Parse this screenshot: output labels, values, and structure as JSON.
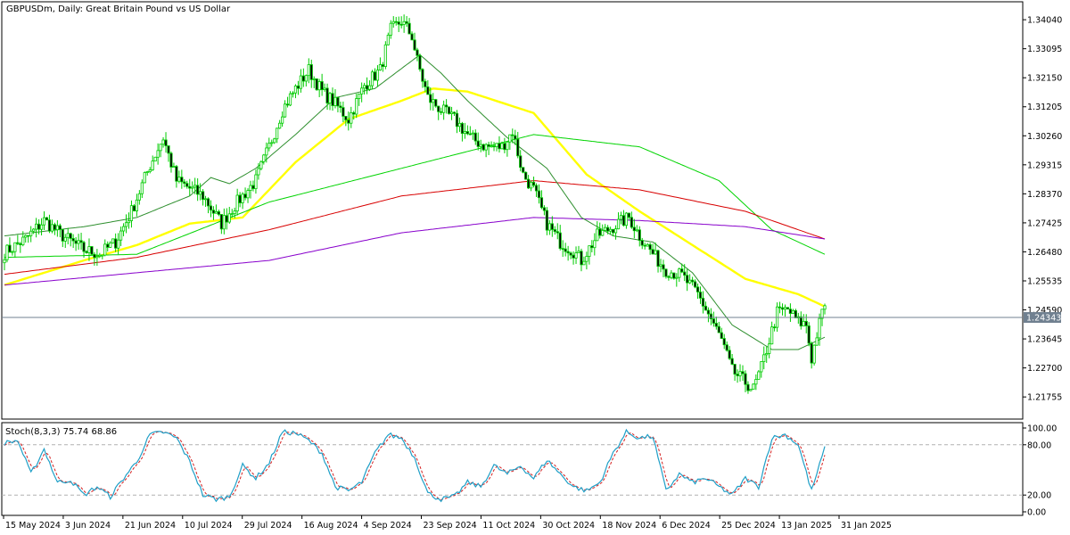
{
  "chart_data": [
    {
      "type": "candlestick",
      "title": "GBPUSDm, Daily:  Great Britain Pound vs US Dollar",
      "y_ticks": [
        "1.34040",
        "1.33095",
        "1.32150",
        "1.31205",
        "1.30260",
        "1.29315",
        "1.28370",
        "1.27425",
        "1.26480",
        "1.25535",
        "1.24590",
        "1.23645",
        "1.22700",
        "1.21755"
      ],
      "ylim": [
        1.2115,
        1.3445
      ],
      "x_tick_labels": [
        "15 May 2024",
        "3 Jun 2024",
        "21 Jun 2024",
        "10 Jul 2024",
        "29 Jul 2024",
        "16 Aug 2024",
        "4 Sep 2024",
        "23 Sep 2024",
        "11 Oct 2024",
        "30 Oct 2024",
        "18 Nov 2024",
        "6 Dec 2024",
        "25 Dec 2024",
        "13 Jan 2025",
        "31 Jan 2025"
      ],
      "current_price": "1.24343",
      "current_price_value": 1.24343,
      "close_path": [
        [
          0,
          1.2645
        ],
        [
          8,
          1.269
        ],
        [
          15,
          1.275
        ],
        [
          22,
          1.27
        ],
        [
          30,
          1.2655
        ],
        [
          36,
          1.264
        ],
        [
          42,
          1.268
        ],
        [
          48,
          1.278
        ],
        [
          55,
          1.293
        ],
        [
          60,
          1.302
        ],
        [
          65,
          1.288
        ],
        [
          75,
          1.283
        ],
        [
          82,
          1.274
        ],
        [
          87,
          1.28
        ],
        [
          95,
          1.288
        ],
        [
          100,
          1.299
        ],
        [
          105,
          1.311
        ],
        [
          110,
          1.318
        ],
        [
          115,
          1.324
        ],
        [
          120,
          1.317
        ],
        [
          125,
          1.313
        ],
        [
          130,
          1.308
        ],
        [
          136,
          1.319
        ],
        [
          142,
          1.324
        ],
        [
          146,
          1.337
        ],
        [
          150,
          1.34
        ],
        [
          154,
          1.335
        ],
        [
          156,
          1.327
        ],
        [
          160,
          1.315
        ],
        [
          165,
          1.311
        ],
        [
          170,
          1.308
        ],
        [
          176,
          1.302
        ],
        [
          182,
          1.299
        ],
        [
          188,
          1.299
        ],
        [
          192,
          1.304
        ],
        [
          196,
          1.29
        ],
        [
          200,
          1.285
        ],
        [
          205,
          1.274
        ],
        [
          210,
          1.268
        ],
        [
          215,
          1.265
        ],
        [
          218,
          1.262
        ],
        [
          224,
          1.27
        ],
        [
          230,
          1.273
        ],
        [
          236,
          1.276
        ],
        [
          240,
          1.27
        ],
        [
          246,
          1.263
        ],
        [
          250,
          1.259
        ],
        [
          256,
          1.257
        ],
        [
          262,
          1.251
        ],
        [
          267,
          1.243
        ],
        [
          271,
          1.236
        ],
        [
          275,
          1.226
        ],
        [
          279,
          1.223
        ],
        [
          283,
          1.22
        ],
        [
          286,
          1.227
        ],
        [
          289,
          1.236
        ],
        [
          292,
          1.245
        ],
        [
          296,
          1.246
        ],
        [
          300,
          1.242
        ],
        [
          303,
          1.241
        ],
        [
          305,
          1.23
        ],
        [
          307,
          1.238
        ],
        [
          310,
          1.248
        ]
      ],
      "moving_averages": [
        {
          "color": "#ffff00",
          "path": [
            [
              0,
              1.254
            ],
            [
              30,
              1.262
            ],
            [
              50,
              1.267
            ],
            [
              70,
              1.274
            ],
            [
              90,
              1.276
            ],
            [
              110,
              1.294
            ],
            [
              130,
              1.308
            ],
            [
              150,
              1.314
            ],
            [
              162,
              1.318
            ],
            [
              175,
              1.317
            ],
            [
              200,
              1.31
            ],
            [
              220,
              1.29
            ],
            [
              240,
              1.278
            ],
            [
              260,
              1.267
            ],
            [
              280,
              1.256
            ],
            [
              300,
              1.251
            ],
            [
              310,
              1.247
            ]
          ]
        },
        {
          "color": "#00d400",
          "path": [
            [
              0,
              1.263
            ],
            [
              50,
              1.264
            ],
            [
              100,
              1.281
            ],
            [
              150,
              1.292
            ],
            [
              200,
              1.303
            ],
            [
              240,
              1.299
            ],
            [
              270,
              1.288
            ],
            [
              290,
              1.272
            ],
            [
              310,
              1.264
            ]
          ]
        },
        {
          "color": "#d80000",
          "path": [
            [
              0,
              1.2575
            ],
            [
              50,
              1.263
            ],
            [
              100,
              1.272
            ],
            [
              150,
              1.283
            ],
            [
              200,
              1.288
            ],
            [
              240,
              1.285
            ],
            [
              280,
              1.278
            ],
            [
              310,
              1.269
            ]
          ]
        },
        {
          "color": "#8800cc",
          "path": [
            [
              0,
              1.254
            ],
            [
              100,
              1.262
            ],
            [
              150,
              1.271
            ],
            [
              200,
              1.276
            ],
            [
              240,
              1.275
            ],
            [
              280,
              1.273
            ],
            [
              310,
              1.269
            ]
          ]
        },
        {
          "color": "#2f8f2f",
          "path": [
            [
              0,
              1.27
            ],
            [
              30,
              1.273
            ],
            [
              50,
              1.276
            ],
            [
              70,
              1.283
            ],
            [
              78,
              1.289
            ],
            [
              85,
              1.287
            ],
            [
              95,
              1.292
            ],
            [
              110,
              1.303
            ],
            [
              125,
              1.315
            ],
            [
              140,
              1.318
            ],
            [
              157,
              1.329
            ],
            [
              165,
              1.323
            ],
            [
              175,
              1.314
            ],
            [
              190,
              1.302
            ],
            [
              205,
              1.292
            ],
            [
              218,
              1.276
            ],
            [
              230,
              1.27
            ],
            [
              245,
              1.268
            ],
            [
              260,
              1.258
            ],
            [
              275,
              1.241
            ],
            [
              290,
              1.233
            ],
            [
              300,
              1.233
            ],
            [
              310,
              1.237
            ]
          ]
        }
      ]
    },
    {
      "type": "line",
      "title": "Stoch(8,3,3) 75.74 68.86",
      "y_ticks": [
        "100.00",
        "80.00",
        "20.00",
        "0.00"
      ],
      "ylim": [
        0,
        100
      ],
      "levels": [
        80,
        20
      ],
      "main_color": "#1f9fc7",
      "signal_color": "#d42020",
      "main_path": [
        [
          0,
          82
        ],
        [
          5,
          85
        ],
        [
          10,
          45
        ],
        [
          15,
          75
        ],
        [
          20,
          35
        ],
        [
          25,
          38
        ],
        [
          30,
          20
        ],
        [
          35,
          30
        ],
        [
          40,
          18
        ],
        [
          45,
          40
        ],
        [
          50,
          60
        ],
        [
          55,
          92
        ],
        [
          60,
          95
        ],
        [
          65,
          88
        ],
        [
          70,
          60
        ],
        [
          75,
          20
        ],
        [
          80,
          15
        ],
        [
          85,
          18
        ],
        [
          90,
          55
        ],
        [
          95,
          40
        ],
        [
          100,
          58
        ],
        [
          105,
          95
        ],
        [
          110,
          94
        ],
        [
          115,
          85
        ],
        [
          120,
          70
        ],
        [
          125,
          30
        ],
        [
          130,
          25
        ],
        [
          135,
          35
        ],
        [
          140,
          70
        ],
        [
          145,
          92
        ],
        [
          150,
          88
        ],
        [
          155,
          65
        ],
        [
          160,
          22
        ],
        [
          165,
          15
        ],
        [
          170,
          18
        ],
        [
          175,
          35
        ],
        [
          180,
          30
        ],
        [
          185,
          55
        ],
        [
          190,
          45
        ],
        [
          195,
          55
        ],
        [
          200,
          40
        ],
        [
          205,
          62
        ],
        [
          210,
          45
        ],
        [
          215,
          30
        ],
        [
          220,
          25
        ],
        [
          225,
          35
        ],
        [
          230,
          70
        ],
        [
          235,
          95
        ],
        [
          240,
          88
        ],
        [
          245,
          90
        ],
        [
          250,
          25
        ],
        [
          255,
          45
        ],
        [
          260,
          35
        ],
        [
          265,
          40
        ],
        [
          270,
          30
        ],
        [
          275,
          20
        ],
        [
          280,
          40
        ],
        [
          285,
          30
        ],
        [
          290,
          88
        ],
        [
          295,
          92
        ],
        [
          300,
          80
        ],
        [
          305,
          25
        ],
        [
          310,
          76
        ]
      ]
    }
  ]
}
